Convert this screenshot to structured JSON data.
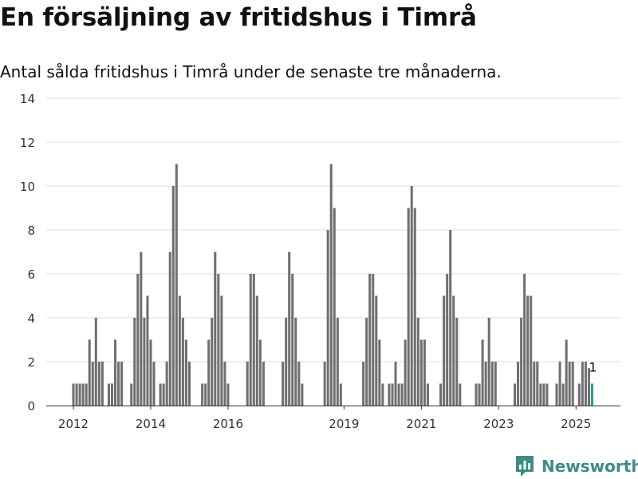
{
  "title": "En försäljning av fritidshus i Timrå",
  "subtitle": "Antal sålda fritidshus i Timrå under de senaste tre månaderna.",
  "brand": {
    "name": "Newsworthy",
    "icon": "newsworthy-chart-bubble-icon",
    "color": "#3e8b86"
  },
  "chart_data": {
    "type": "bar",
    "title": "",
    "xlabel": "",
    "ylabel": "",
    "ylim": [
      0,
      14
    ],
    "yticks": [
      "0",
      "2",
      "4",
      "6",
      "8",
      "10",
      "12",
      "14"
    ],
    "x_start": "2012-01",
    "x_end": "2025-05",
    "xticks": [
      {
        "label": "2012",
        "date": "2012-01"
      },
      {
        "label": "2014",
        "date": "2014-01"
      },
      {
        "label": "2016",
        "date": "2016-01"
      },
      {
        "label": "2019",
        "date": "2019-01"
      },
      {
        "label": "2021",
        "date": "2021-01"
      },
      {
        "label": "2023",
        "date": "2023-01"
      },
      {
        "label": "2025",
        "date": "2025-01"
      }
    ],
    "grid": true,
    "legend": "none",
    "colors": {
      "bar": "#6f6f73",
      "highlight": "#2a9d95"
    },
    "values": [
      1,
      1,
      1,
      1,
      1,
      3,
      2,
      4,
      2,
      2,
      0,
      1,
      1,
      3,
      2,
      2,
      0,
      0,
      1,
      4,
      6,
      7,
      4,
      5,
      3,
      2,
      0,
      1,
      1,
      2,
      7,
      10,
      11,
      5,
      4,
      3,
      2,
      0,
      0,
      0,
      1,
      1,
      3,
      4,
      7,
      6,
      5,
      2,
      1,
      0,
      0,
      0,
      0,
      0,
      2,
      6,
      6,
      5,
      3,
      2,
      0,
      0,
      0,
      0,
      0,
      2,
      4,
      7,
      6,
      4,
      2,
      1,
      0,
      0,
      0,
      0,
      0,
      0,
      2,
      8,
      11,
      9,
      4,
      1,
      0,
      0,
      0,
      0,
      0,
      0,
      2,
      4,
      6,
      6,
      5,
      3,
      1,
      0,
      1,
      1,
      2,
      1,
      1,
      3,
      9,
      10,
      9,
      4,
      3,
      3,
      1,
      0,
      0,
      0,
      1,
      5,
      6,
      8,
      5,
      4,
      1,
      0,
      0,
      0,
      0,
      1,
      1,
      3,
      2,
      4,
      2,
      2,
      0,
      0,
      0,
      0,
      0,
      1,
      2,
      4,
      6,
      5,
      5,
      2,
      2,
      1,
      1,
      1,
      0,
      0,
      1,
      2,
      1,
      3,
      2,
      2,
      0,
      1,
      2,
      2,
      1.7,
      1
    ],
    "highlight_last": true,
    "last_label": "1"
  }
}
